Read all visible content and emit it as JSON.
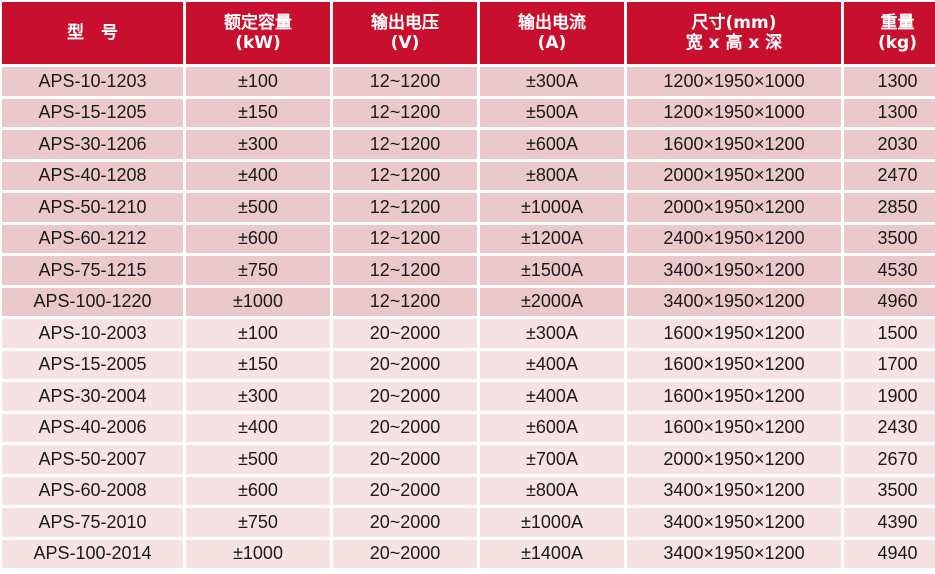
{
  "headers": [
    {
      "line1": "型　号",
      "line2": ""
    },
    {
      "line1": "额定容量",
      "line2": "(kW)"
    },
    {
      "line1": "输出电压",
      "line2": "(V)"
    },
    {
      "line1": "输出电流",
      "line2": "(A)"
    },
    {
      "line1": "尺寸(mm)",
      "line2": "宽 x 高 x 深"
    },
    {
      "line1": "重量",
      "line2": "(kg)"
    }
  ],
  "rows": [
    [
      "APS-10-1203",
      "±100",
      "12~1200",
      "±300A",
      "1200×1950×1000",
      "1300"
    ],
    [
      "APS-15-1205",
      "±150",
      "12~1200",
      "±500A",
      "1200×1950×1000",
      "1300"
    ],
    [
      "APS-30-1206",
      "±300",
      "12~1200",
      "±600A",
      "1600×1950×1200",
      "2030"
    ],
    [
      "APS-40-1208",
      "±400",
      "12~1200",
      "±800A",
      "2000×1950×1200",
      "2470"
    ],
    [
      "APS-50-1210",
      "±500",
      "12~1200",
      "±1000A",
      "2000×1950×1200",
      "2850"
    ],
    [
      "APS-60-1212",
      "±600",
      "12~1200",
      "±1200A",
      "2400×1950×1200",
      "3500"
    ],
    [
      "APS-75-1215",
      "±750",
      "12~1200",
      "±1500A",
      "3400×1950×1200",
      "4530"
    ],
    [
      "APS-100-1220",
      "±1000",
      "12~1200",
      "±2000A",
      "3400×1950×1200",
      "4960"
    ],
    [
      "APS-10-2003",
      "±100",
      "20~2000",
      "±300A",
      "1600×1950×1200",
      "1500"
    ],
    [
      "APS-15-2005",
      "±150",
      "20~2000",
      "±400A",
      "1600×1950×1200",
      "1700"
    ],
    [
      "APS-30-2004",
      "±300",
      "20~2000",
      "±400A",
      "1600×1950×1200",
      "1900"
    ],
    [
      "APS-40-2006",
      "±400",
      "20~2000",
      "±600A",
      "1600×1950×1200",
      "2430"
    ],
    [
      "APS-50-2007",
      "±500",
      "20~2000",
      "±700A",
      "2000×1950×1200",
      "2670"
    ],
    [
      "APS-60-2008",
      "±600",
      "20~2000",
      "±800A",
      "3400×1950×1200",
      "3500"
    ],
    [
      "APS-75-2010",
      "±750",
      "20~2000",
      "±1000A",
      "3400×1950×1200",
      "4390"
    ],
    [
      "APS-100-2014",
      "±1000",
      "20~2000",
      "±1400A",
      "3400×1950×1200",
      "4940"
    ]
  ],
  "colors": {
    "header_bg": "#c8102e",
    "header_text": "#ffffff",
    "row_group_1": "#ebc9cb",
    "row_group_2": "#f6e2e3"
  }
}
